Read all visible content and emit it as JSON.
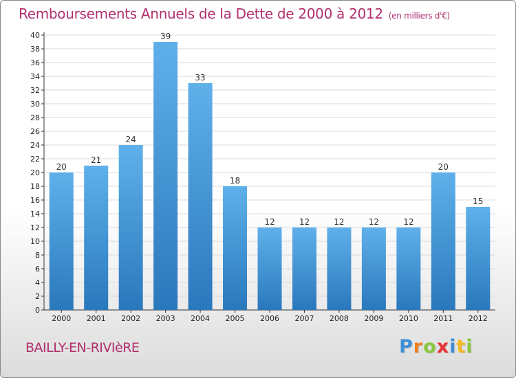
{
  "header": {
    "title": "Remboursements Annuels de la Dette de 2000 à 2012",
    "unit": "(en milliers d'€)"
  },
  "footer": {
    "commune": "BAILLY-EN-RIVIèRE",
    "brand": [
      {
        "char": "P",
        "color": "#3d8fd6"
      },
      {
        "char": "r",
        "color": "#f07f1f"
      },
      {
        "char": "o",
        "color": "#8cc63f"
      },
      {
        "char": "x",
        "color": "#e8312f"
      },
      {
        "char": "i",
        "color": "#3d8fd6"
      },
      {
        "char": "t",
        "color": "#f2b81e"
      },
      {
        "char": "i",
        "color": "#8cc63f"
      }
    ]
  },
  "colors": {
    "title": "#b0306e",
    "bar_top": "#5fb0ea",
    "bar_bottom": "#2a78bc",
    "grid": "#d9d9d9",
    "axis": "#333333"
  },
  "chart_data": {
    "type": "bar",
    "title": "Remboursements Annuels de la Dette de 2000 à 2012",
    "subtitle": "(en milliers d'€)",
    "xlabel": "",
    "ylabel": "",
    "categories": [
      "2000",
      "2001",
      "2002",
      "2003",
      "2004",
      "2005",
      "2006",
      "2007",
      "2008",
      "2009",
      "2010",
      "2011",
      "2012"
    ],
    "values": [
      20,
      21,
      24,
      39,
      33,
      18,
      12,
      12,
      12,
      12,
      12,
      20,
      15
    ],
    "ylim": [
      0,
      40
    ],
    "yticks": [
      0,
      2,
      4,
      6,
      8,
      10,
      12,
      14,
      16,
      18,
      20,
      22,
      24,
      26,
      28,
      30,
      32,
      34,
      36,
      38,
      40
    ],
    "grid": true,
    "data_labels": true,
    "legend": "none"
  }
}
